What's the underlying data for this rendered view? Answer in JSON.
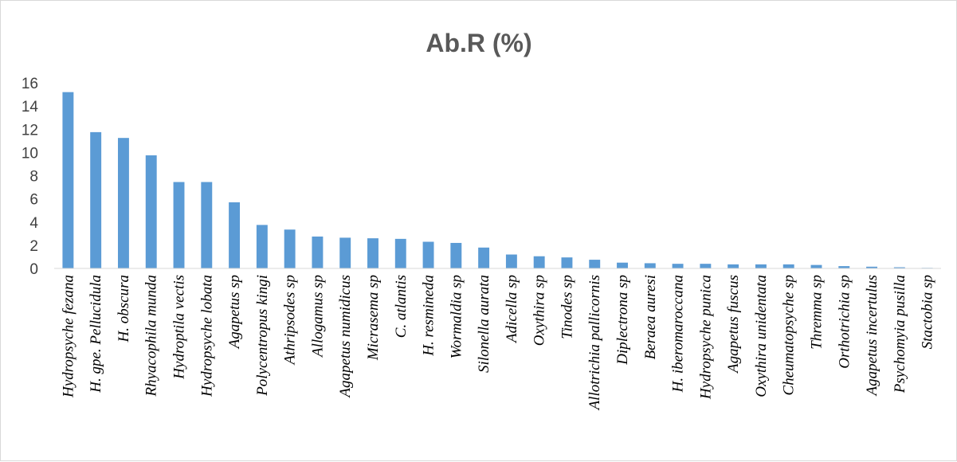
{
  "chart_data": {
    "type": "bar",
    "title": "Ab.R (%)",
    "xlabel": "",
    "ylabel": "",
    "ylim": [
      0,
      16
    ],
    "yticks": [
      0,
      2,
      4,
      6,
      8,
      10,
      12,
      14,
      16
    ],
    "grid": false,
    "legend": "none",
    "bar_color": "#5b9bd5",
    "categories": [
      "Hydropsyche fezana",
      "H. gpe. Pellucidula",
      "H. obscura",
      "Rhyacophila munda",
      "Hydroptila vectis",
      "Hydropsyche lobata",
      "Agapetus sp",
      "Polycentropus kingi",
      "Athripsodes sp",
      "Allogamus sp",
      "Agapetus numidicus",
      "Micrasema sp",
      "C.  atlantis",
      "H. resmineda",
      "Wormaldia sp",
      "Silonella aurata",
      "Adicella sp",
      "Oxythira sp",
      "Tinodes sp",
      "Allotrichia pallicornis",
      "Diplectrona sp",
      "Beraea auresi",
      "H.  iberomaroccana",
      "Hydropsyche punica",
      "Agapetus fuscus",
      "Oxythira unidentata",
      "Cheumatopsyche sp",
      "Thremma sp",
      "Orthotrichia sp",
      "Agapetus incertulus",
      "Psychomyia pusilla",
      "Stactobia sp"
    ],
    "values": [
      15.2,
      11.75,
      11.25,
      9.75,
      7.45,
      7.45,
      5.7,
      3.75,
      3.35,
      2.75,
      2.65,
      2.6,
      2.55,
      2.3,
      2.2,
      1.8,
      1.2,
      1.05,
      0.95,
      0.75,
      0.5,
      0.45,
      0.4,
      0.4,
      0.35,
      0.35,
      0.35,
      0.3,
      0.2,
      0.15,
      0.1,
      0.05
    ]
  }
}
